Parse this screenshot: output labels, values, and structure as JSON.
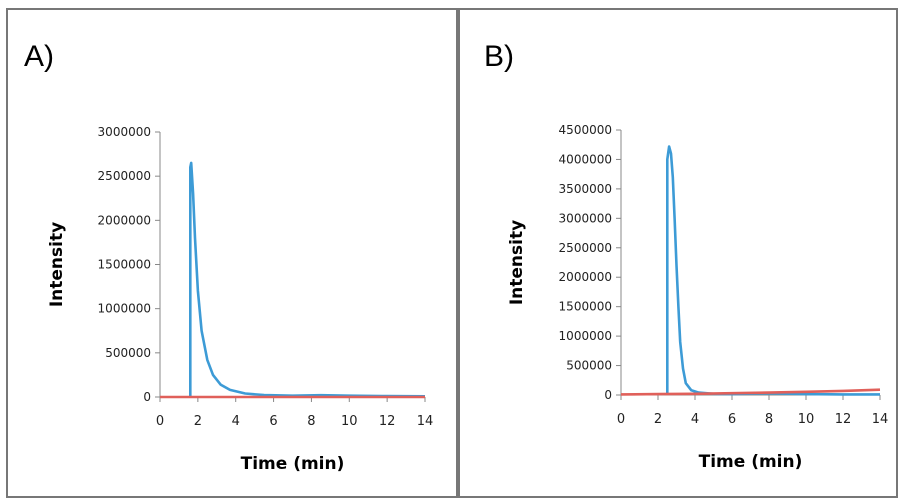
{
  "panels": [
    {
      "label": "A)"
    },
    {
      "label": "B)"
    }
  ],
  "colors": {
    "blue_series": "#3d9bd6",
    "red_series": "#e0605a",
    "axis": "#888888"
  },
  "chart_data": [
    {
      "type": "line",
      "panel": "A)",
      "title": "",
      "xlabel": "Time (min)",
      "ylabel": "Intensity",
      "xlim": [
        0,
        14
      ],
      "ylim": [
        0,
        3000000
      ],
      "xticks": [
        0,
        2,
        4,
        6,
        8,
        10,
        12,
        14
      ],
      "yticks": [
        0,
        500000,
        1000000,
        1500000,
        2000000,
        2500000,
        3000000
      ],
      "grid": false,
      "legend": "none",
      "series": [
        {
          "color": "#3d9bd6",
          "x": [
            1.6,
            1.6,
            1.65,
            1.75,
            1.85,
            2.0,
            2.2,
            2.5,
            2.8,
            3.2,
            3.7,
            4.5,
            5.5,
            7,
            8.5,
            10,
            12,
            14
          ],
          "y": [
            0,
            2600000,
            2650000,
            2300000,
            1800000,
            1200000,
            750000,
            420000,
            250000,
            140000,
            80000,
            40000,
            22000,
            15000,
            20000,
            15000,
            10000,
            8000
          ]
        },
        {
          "color": "#e0605a",
          "x": [
            0,
            14
          ],
          "y": [
            0,
            0
          ]
        }
      ]
    },
    {
      "type": "line",
      "panel": "B)",
      "title": "",
      "xlabel": "Time (min)",
      "ylabel": "Intensity",
      "xlim": [
        0,
        14
      ],
      "ylim": [
        0,
        4500000
      ],
      "xticks": [
        0,
        2,
        4,
        6,
        8,
        10,
        12,
        14
      ],
      "yticks": [
        0,
        500000,
        1000000,
        1500000,
        2000000,
        2500000,
        3000000,
        3500000,
        4000000,
        4500000
      ],
      "grid": false,
      "legend": "none",
      "series": [
        {
          "color": "#3d9bd6",
          "x": [
            2.5,
            2.5,
            2.6,
            2.7,
            2.8,
            2.9,
            3.0,
            3.1,
            3.2,
            3.35,
            3.5,
            3.8,
            4.2,
            5,
            6,
            8,
            10,
            12,
            14
          ],
          "y": [
            0,
            4000000,
            4220000,
            4100000,
            3700000,
            3000000,
            2200000,
            1500000,
            900000,
            450000,
            200000,
            80000,
            40000,
            20000,
            15000,
            30000,
            15000,
            10000,
            10000
          ]
        },
        {
          "color": "#e0605a",
          "x": [
            0,
            2,
            4,
            6,
            8,
            10,
            12,
            14
          ],
          "y": [
            10000,
            15000,
            20000,
            30000,
            40000,
            55000,
            70000,
            90000
          ]
        }
      ]
    }
  ]
}
